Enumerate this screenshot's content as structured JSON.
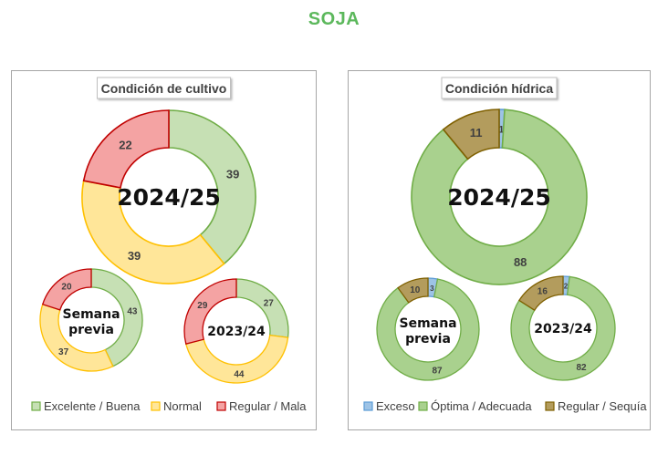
{
  "title": "SOJA",
  "legends": {
    "cultivo": [
      {
        "label": "Excelente / Buena",
        "fill": "#c6e0b4",
        "stroke": "#70ad47"
      },
      {
        "label": "Normal",
        "fill": "#ffe699",
        "stroke": "#ffc000"
      },
      {
        "label": "Regular / Mala",
        "fill": "#f4a3a3",
        "stroke": "#c00000"
      }
    ],
    "hidrica": [
      {
        "label": "Exceso",
        "fill": "#9dc3e6",
        "stroke": "#5b9bd5"
      },
      {
        "label": "Óptima / Adecuada",
        "fill": "#a9d18e",
        "stroke": "#70ad47"
      },
      {
        "label": "Regular / Sequía",
        "fill": "#b39c5d",
        "stroke": "#7f6000"
      }
    ]
  },
  "chart_data": [
    {
      "type": "pie",
      "panel": "Condición de cultivo",
      "categories": [
        "Excelente / Buena",
        "Normal",
        "Regular / Mala"
      ],
      "rings": [
        {
          "center_label": "2024/25",
          "values": [
            39,
            39,
            22
          ]
        },
        {
          "center_label": "Semana previa",
          "values": [
            43,
            37,
            20
          ]
        },
        {
          "center_label": "2023/24",
          "values": [
            27,
            44,
            29
          ]
        }
      ]
    },
    {
      "type": "pie",
      "panel": "Condición hídrica",
      "categories": [
        "Exceso",
        "Óptima / Adecuada",
        "Regular / Sequía"
      ],
      "rings": [
        {
          "center_label": "2024/25",
          "values": [
            1,
            88,
            11
          ]
        },
        {
          "center_label": "Semana previa",
          "values": [
            3,
            87,
            10
          ]
        },
        {
          "center_label": "2023/24",
          "values": [
            2,
            82,
            16
          ]
        }
      ]
    }
  ]
}
